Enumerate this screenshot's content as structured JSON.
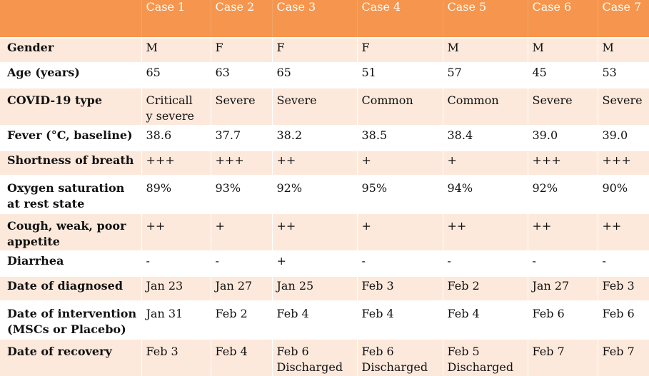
{
  "table": {
    "columns": [
      "",
      "Case 1",
      "Case 2",
      "Case 3",
      "Case 4",
      "Case 5",
      "Case 6",
      "Case 7"
    ],
    "rows": [
      {
        "label": [
          "Gender"
        ],
        "values": [
          [
            "M"
          ],
          [
            "F"
          ],
          [
            "F"
          ],
          [
            "F"
          ],
          [
            "M"
          ],
          [
            "M"
          ],
          [
            "M"
          ]
        ]
      },
      {
        "label": [
          "Age (years)"
        ],
        "values": [
          [
            "65"
          ],
          [
            "63"
          ],
          [
            "65"
          ],
          [
            "51"
          ],
          [
            "57"
          ],
          [
            "45"
          ],
          [
            "53"
          ]
        ]
      },
      {
        "label": [
          "COVID-19 type"
        ],
        "values": [
          [
            "Criticall",
            "y severe"
          ],
          [
            "Severe"
          ],
          [
            "Severe"
          ],
          [
            "Common"
          ],
          [
            "Common"
          ],
          [
            "Severe"
          ],
          [
            "Severe"
          ]
        ]
      },
      {
        "label": [
          "Fever (°C, baseline)"
        ],
        "values": [
          [
            "38.6"
          ],
          [
            "37.7"
          ],
          [
            "38.2"
          ],
          [
            "38.5"
          ],
          [
            "38.4"
          ],
          [
            "39.0"
          ],
          [
            "39.0"
          ]
        ]
      },
      {
        "label": [
          "Shortness of breath"
        ],
        "values": [
          [
            "+++"
          ],
          [
            "+++"
          ],
          [
            "++"
          ],
          [
            "+"
          ],
          [
            "+"
          ],
          [
            "+++"
          ],
          [
            "+++"
          ]
        ]
      },
      {
        "label": [
          "Oxygen saturation",
          "at rest state"
        ],
        "values": [
          [
            "89%"
          ],
          [
            "93%"
          ],
          [
            "92%"
          ],
          [
            "95%"
          ],
          [
            "94%"
          ],
          [
            "92%"
          ],
          [
            "90%"
          ]
        ]
      },
      {
        "label": [
          "Cough, weak, poor",
          "appetite"
        ],
        "values": [
          [
            "++"
          ],
          [
            "+"
          ],
          [
            "++"
          ],
          [
            "+"
          ],
          [
            "++"
          ],
          [
            "++"
          ],
          [
            "++"
          ]
        ]
      },
      {
        "label": [
          "Diarrhea"
        ],
        "values": [
          [
            "-"
          ],
          [
            "-"
          ],
          [
            "+"
          ],
          [
            "-"
          ],
          [
            "-"
          ],
          [
            "-"
          ],
          [
            "-"
          ]
        ]
      },
      {
        "label": [
          "Date of diagnosed"
        ],
        "values": [
          [
            "Jan 23"
          ],
          [
            "Jan 27"
          ],
          [
            "Jan 25"
          ],
          [
            "Feb 3"
          ],
          [
            "Feb 2"
          ],
          [
            "Jan 27"
          ],
          [
            "Feb 3"
          ]
        ]
      },
      {
        "label": [
          "Date of intervention",
          "(MSCs or Placebo)"
        ],
        "values": [
          [
            "Jan 31"
          ],
          [
            "Feb 2"
          ],
          [
            "Feb 4"
          ],
          [
            "Feb 4"
          ],
          [
            "Feb 4"
          ],
          [
            "Feb 6"
          ],
          [
            "Feb 6"
          ]
        ]
      },
      {
        "label": [
          "Date of recovery"
        ],
        "values": [
          [
            "Feb 3"
          ],
          [
            "Feb 4"
          ],
          [
            "Feb 6",
            "Discharged"
          ],
          [
            "Feb 6",
            "Discharged"
          ],
          [
            "Feb 5",
            "Discharged"
          ],
          [
            "Feb 7"
          ],
          [
            "Feb 7"
          ]
        ]
      }
    ]
  },
  "colors": {
    "header_bg": "#f6964e",
    "band": "#fde9dc",
    "header_text": "#ffffff"
  }
}
